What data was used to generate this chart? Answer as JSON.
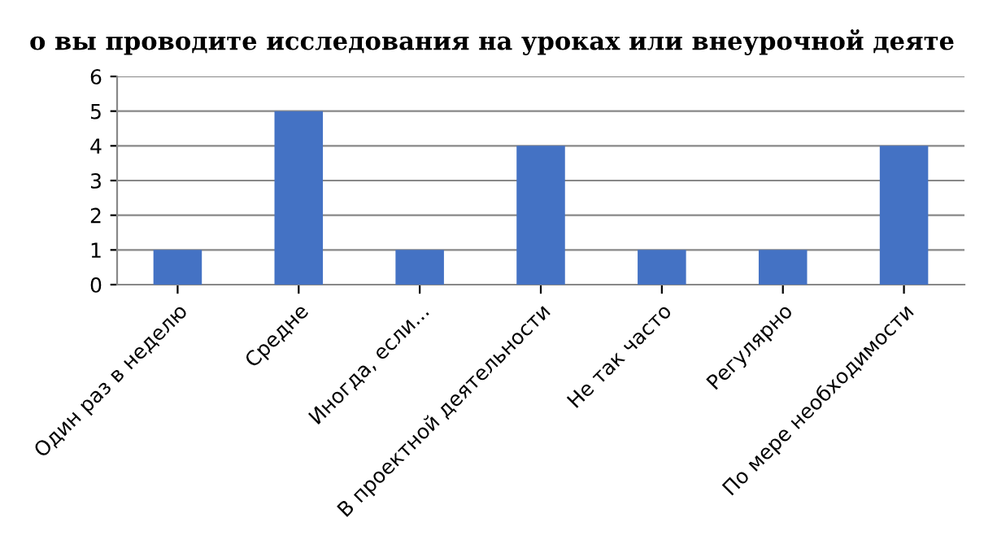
{
  "chart_data": {
    "type": "bar",
    "title": "о вы проводите исследования на уроках или внеурочной деяте",
    "categories": [
      "Один раз в неделю",
      "Средне",
      "Иногда, если...",
      "В проектной деятельности",
      "Не так часто",
      "Регулярно",
      "По мере необходимости"
    ],
    "values": [
      1,
      5,
      1,
      4,
      1,
      1,
      4
    ],
    "color": "#4472c4",
    "ylim": [
      0,
      6
    ],
    "yticks": [
      0,
      1,
      2,
      3,
      4,
      5,
      6
    ],
    "grid": "y"
  }
}
